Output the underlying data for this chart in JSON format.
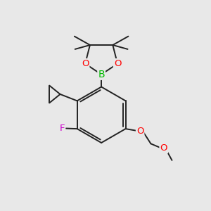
{
  "bg_color": "#e8e8e8",
  "bond_color": "#222222",
  "bond_width": 1.4,
  "atom_colors": {
    "B": "#00bb00",
    "O": "#ff0000",
    "F": "#cc00cc",
    "C": "#222222"
  },
  "font_size": 9.5
}
